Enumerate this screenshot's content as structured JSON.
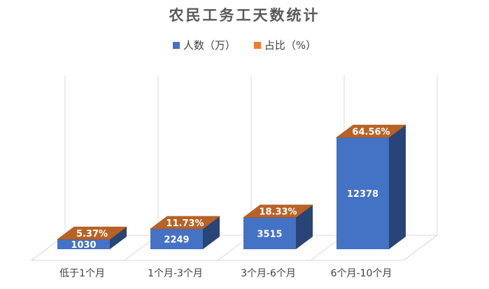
{
  "chart_data": {
    "type": "bar",
    "title": "农民工务工天数统计",
    "categories": [
      "低于1个月",
      "1个月-3个月",
      "3个月-6个月",
      "6个月-10个月"
    ],
    "series": [
      {
        "name": "人数（万）",
        "values": [
          1030,
          2249,
          3515,
          12378
        ],
        "labels": [
          "1030",
          "2249",
          "3515",
          "12378"
        ],
        "color": "#4472C4"
      },
      {
        "name": "占比（%）",
        "values": [
          5.37,
          11.73,
          18.33,
          64.56
        ],
        "labels": [
          "5.37%",
          "11.73%",
          "18.33%",
          "64.56%"
        ],
        "color": "#ED7D31"
      }
    ],
    "stacked": true,
    "three_d": true,
    "legend_position": "top",
    "grid": true
  }
}
